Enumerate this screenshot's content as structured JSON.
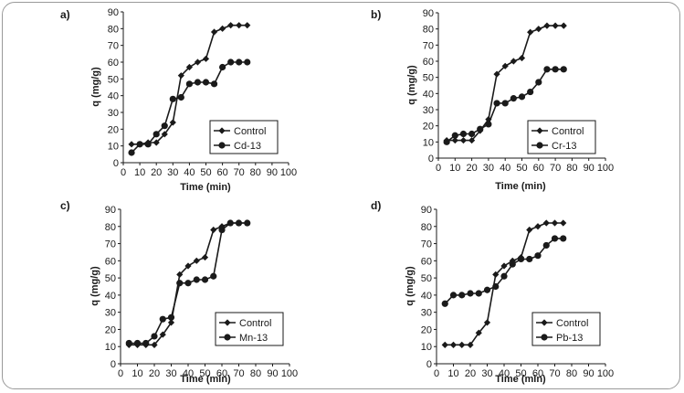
{
  "figure_title": "",
  "colors": {
    "series": "#1a1a1a",
    "axis": "#1a1a1a",
    "frame": "#9a9a9a"
  },
  "marker_names": {
    "Control": "diamond",
    "other": "circle"
  },
  "chart_data": [
    {
      "type": "line",
      "panel_label": "a)",
      "xlabel": "Time (min)",
      "ylabel": "q (mg/g)",
      "xlim": [
        0,
        100
      ],
      "ylim": [
        0,
        90
      ],
      "xticks": [
        "0",
        "10",
        "20",
        "30",
        "40",
        "50",
        "60",
        "70",
        "80",
        "90",
        "100"
      ],
      "yticks": [
        "0",
        "10",
        "20",
        "30",
        "40",
        "50",
        "60",
        "70",
        "80",
        "90"
      ],
      "legend_position": "bottom-right",
      "series": [
        {
          "name": "Control",
          "x": [
            5,
            10,
            15,
            20,
            25,
            30,
            35,
            40,
            45,
            50,
            55,
            60,
            65,
            70,
            75
          ],
          "y": [
            11,
            11,
            12,
            12,
            17,
            24,
            52,
            57,
            60,
            62,
            78,
            80,
            82,
            82,
            82
          ]
        },
        {
          "name": "Cd-13",
          "x": [
            5,
            10,
            15,
            20,
            25,
            30,
            35,
            40,
            45,
            50,
            55,
            60,
            65,
            70,
            75
          ],
          "y": [
            6,
            11,
            11,
            17,
            22,
            38,
            39,
            47,
            48,
            48,
            47,
            57,
            60,
            60,
            60
          ]
        }
      ]
    },
    {
      "type": "line",
      "panel_label": "b)",
      "xlabel": "Time (min)",
      "ylabel": "q (mg/g)",
      "xlim": [
        0,
        100
      ],
      "ylim": [
        0,
        90
      ],
      "xticks": [
        "0",
        "10",
        "20",
        "30",
        "40",
        "50",
        "60",
        "70",
        "80",
        "90",
        "100"
      ],
      "yticks": [
        "0",
        "10",
        "20",
        "30",
        "40",
        "50",
        "60",
        "70",
        "80",
        "90"
      ],
      "legend_position": "bottom-right",
      "series": [
        {
          "name": "Control",
          "x": [
            5,
            10,
            15,
            20,
            25,
            30,
            35,
            40,
            45,
            50,
            55,
            60,
            65,
            70,
            75
          ],
          "y": [
            11,
            11,
            11,
            11,
            17,
            24,
            52,
            57,
            60,
            62,
            78,
            80,
            82,
            82,
            82
          ]
        },
        {
          "name": "Cr-13",
          "x": [
            5,
            10,
            15,
            20,
            25,
            30,
            35,
            40,
            45,
            50,
            55,
            60,
            65,
            70,
            75
          ],
          "y": [
            10,
            14,
            15,
            15,
            18,
            21,
            34,
            34,
            37,
            38,
            41,
            47,
            55,
            55,
            55
          ]
        }
      ]
    },
    {
      "type": "line",
      "panel_label": "c)",
      "xlabel": "Time (min)",
      "ylabel": "q (mg/g)",
      "xlim": [
        0,
        100
      ],
      "ylim": [
        0,
        90
      ],
      "xticks": [
        "0",
        "10",
        "20",
        "30",
        "40",
        "50",
        "60",
        "70",
        "80",
        "90",
        "100"
      ],
      "yticks": [
        "0",
        "10",
        "20",
        "30",
        "40",
        "50",
        "60",
        "70",
        "80",
        "90"
      ],
      "legend_position": "bottom-right",
      "series": [
        {
          "name": "Control",
          "x": [
            5,
            10,
            15,
            20,
            25,
            30,
            35,
            40,
            45,
            50,
            55,
            60,
            65,
            70,
            75
          ],
          "y": [
            11,
            11,
            11,
            11,
            17,
            24,
            52,
            57,
            60,
            62,
            78,
            80,
            82,
            82,
            82
          ]
        },
        {
          "name": "Mn-13",
          "x": [
            5,
            10,
            15,
            20,
            25,
            30,
            35,
            40,
            45,
            50,
            55,
            60,
            65,
            70,
            75
          ],
          "y": [
            12,
            12,
            12,
            16,
            26,
            27,
            47,
            47,
            49,
            49,
            51,
            78,
            82,
            82,
            82
          ]
        }
      ]
    },
    {
      "type": "line",
      "panel_label": "d)",
      "xlabel": "Time (min)",
      "ylabel": "q (mg/g)",
      "xlim": [
        0,
        100
      ],
      "ylim": [
        0,
        90
      ],
      "xticks": [
        "0",
        "10",
        "20",
        "30",
        "40",
        "50",
        "60",
        "70",
        "80",
        "90",
        "100"
      ],
      "yticks": [
        "0",
        "10",
        "20",
        "30",
        "40",
        "50",
        "60",
        "70",
        "80",
        "90"
      ],
      "legend_position": "bottom-right",
      "series": [
        {
          "name": "Control",
          "x": [
            5,
            10,
            15,
            20,
            25,
            30,
            35,
            40,
            45,
            50,
            55,
            60,
            65,
            70,
            75
          ],
          "y": [
            11,
            11,
            11,
            11,
            18,
            24,
            52,
            57,
            60,
            62,
            78,
            80,
            82,
            82,
            82
          ]
        },
        {
          "name": "Pb-13",
          "x": [
            5,
            10,
            15,
            20,
            25,
            30,
            35,
            40,
            45,
            50,
            55,
            60,
            65,
            70,
            75
          ],
          "y": [
            35,
            40,
            40,
            41,
            41,
            43,
            45,
            51,
            58,
            61,
            61,
            63,
            69,
            73,
            73
          ]
        }
      ]
    }
  ]
}
